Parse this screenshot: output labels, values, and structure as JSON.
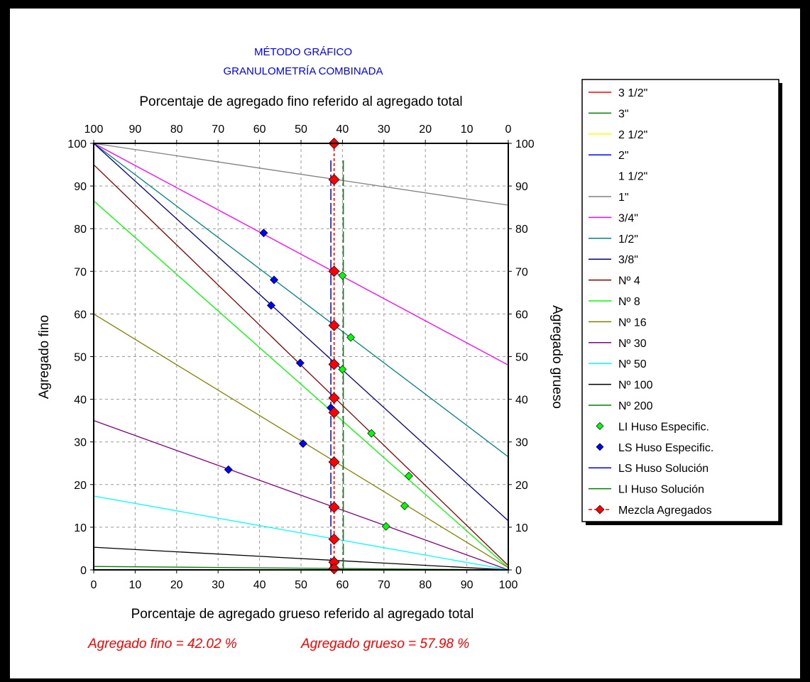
{
  "chart_data": {
    "type": "line",
    "title_lines": [
      "MÉTODO GRÁFICO",
      "GRANULOMETRÍA COMBINADA"
    ],
    "title_color": "#0000ff",
    "xlabel": "Porcentaje de agregado grueso referido al agregado total",
    "x2label": "Porcentaje de agregado fino referido al agregado total",
    "ylabel": "Agregado fino",
    "y2label": "Agregado grueso",
    "xlim": [
      0,
      100
    ],
    "ylim": [
      0,
      100
    ],
    "x_ticks": [
      0,
      10,
      20,
      30,
      40,
      50,
      60,
      70,
      80,
      90,
      100
    ],
    "x_ticks_top": [
      100,
      90,
      80,
      70,
      60,
      50,
      40,
      30,
      20,
      10,
      0
    ],
    "y_ticks": [
      0,
      10,
      20,
      30,
      40,
      50,
      60,
      70,
      80,
      90,
      100
    ],
    "grid": true,
    "legend_position": "right",
    "lines": [
      {
        "name": "3 1/2\"",
        "color": "#ff0000",
        "y0": 100,
        "y100": 100
      },
      {
        "name": "3\"",
        "color": "#008000",
        "y0": 100,
        "y100": 100
      },
      {
        "name": "2 1/2\"",
        "color": "#ffff00",
        "y0": 100,
        "y100": 100
      },
      {
        "name": "2\"",
        "color": "#0000ff",
        "y0": 100,
        "y100": 100
      },
      {
        "name": "1 1/2\"",
        "color": "#ffffff",
        "y0": 100,
        "y100": 100
      },
      {
        "name": "1\"",
        "color": "#808080",
        "y0": 100,
        "y100": 85.5
      },
      {
        "name": "3/4\"",
        "color": "#ff00ff",
        "y0": 100,
        "y100": 48
      },
      {
        "name": "1/2\"",
        "color": "#008080",
        "y0": 100,
        "y100": 26.5
      },
      {
        "name": "3/8\"",
        "color": "#000080",
        "y0": 100,
        "y100": 11.5
      },
      {
        "name": "Nº 4",
        "color": "#800000",
        "y0": 95,
        "y100": 1
      },
      {
        "name": "Nº 8",
        "color": "#00ff00",
        "y0": 86.5,
        "y100": 0.5
      },
      {
        "name": "Nº 16",
        "color": "#808000",
        "y0": 60,
        "y100": 0.5
      },
      {
        "name": "Nº 30",
        "color": "#800080",
        "y0": 35,
        "y100": 0
      },
      {
        "name": "Nº 50",
        "color": "#00ffff",
        "y0": 17.3,
        "y100": 0
      },
      {
        "name": "Nº 100",
        "color": "#000000",
        "y0": 5.3,
        "y100": 0
      },
      {
        "name": "Nº 200",
        "color": "#008000",
        "y0": 0.8,
        "y100": 0
      }
    ],
    "li_especific": {
      "name": "LI Huso Especific.",
      "color": "#00ff00",
      "points": [
        [
          60,
          69
        ],
        [
          62,
          54.5
        ],
        [
          60,
          47
        ],
        [
          67,
          32
        ],
        [
          76,
          22
        ],
        [
          75,
          15
        ],
        [
          70.5,
          10.2
        ]
      ]
    },
    "ls_especific": {
      "name": "LS Huso Especific.",
      "color": "#0000ff",
      "points": [
        [
          41,
          79
        ],
        [
          43.5,
          68
        ],
        [
          42.8,
          62
        ],
        [
          49.8,
          48.5
        ],
        [
          57.2,
          38
        ],
        [
          50.5,
          29.6
        ],
        [
          32.5,
          23.5
        ]
      ]
    },
    "ls_solucion": {
      "name": "LS Huso Solución",
      "color": "#0000ff",
      "x": 57.2
    },
    "li_solucion": {
      "name": "LI Huso Solución",
      "color": "#008000",
      "x": 60.2
    },
    "mezcla": {
      "name": "Mezcla Agregados",
      "color": "#ff0000",
      "x": 57.98,
      "y": [
        100,
        91.5,
        70,
        57.3,
        48.2,
        40.3,
        36.9,
        25.3,
        14.7,
        7.2,
        1.8,
        0.3
      ]
    },
    "annotations": {
      "fino": "Agregado fino = 42.02 %",
      "grueso": "Agregado grueso = 57.98 %",
      "color": "#ff0000"
    }
  }
}
